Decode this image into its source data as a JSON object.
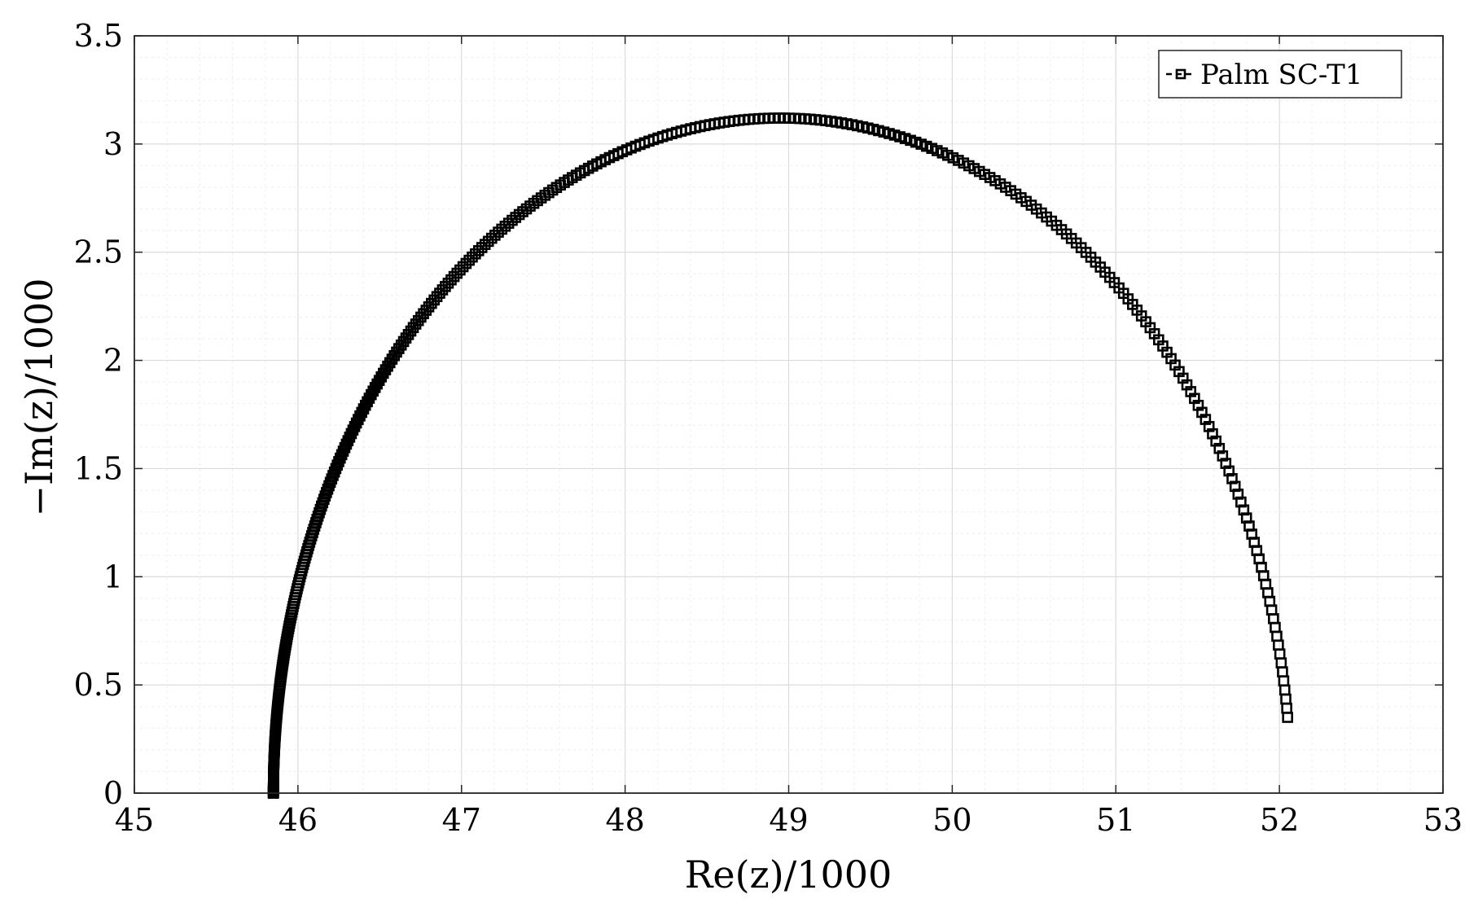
{
  "chart_data": {
    "type": "scatter",
    "xlabel": "Re(z)/1000",
    "ylabel": "−Im(z)/1000",
    "xlim": [
      45,
      53
    ],
    "ylim": [
      0,
      3.5
    ],
    "xticks": [
      "45",
      "46",
      "47",
      "48",
      "49",
      "50",
      "51",
      "52",
      "53"
    ],
    "yticks": [
      "0",
      "0.5",
      "1",
      "1.5",
      "2",
      "2.5",
      "3",
      "3.5"
    ],
    "grid": true,
    "minor_grid": true,
    "legend_position": "top-right",
    "series": [
      {
        "name": "Palm SC-T1",
        "marker": "square",
        "line": "dashed",
        "color": "#000000",
        "arc": {
          "x_start": 45.85,
          "x_end": 52.05,
          "y_start": 0.0,
          "y_end": 0.35,
          "peak_x": 48.95,
          "peak_y": 3.12
        }
      }
    ]
  }
}
